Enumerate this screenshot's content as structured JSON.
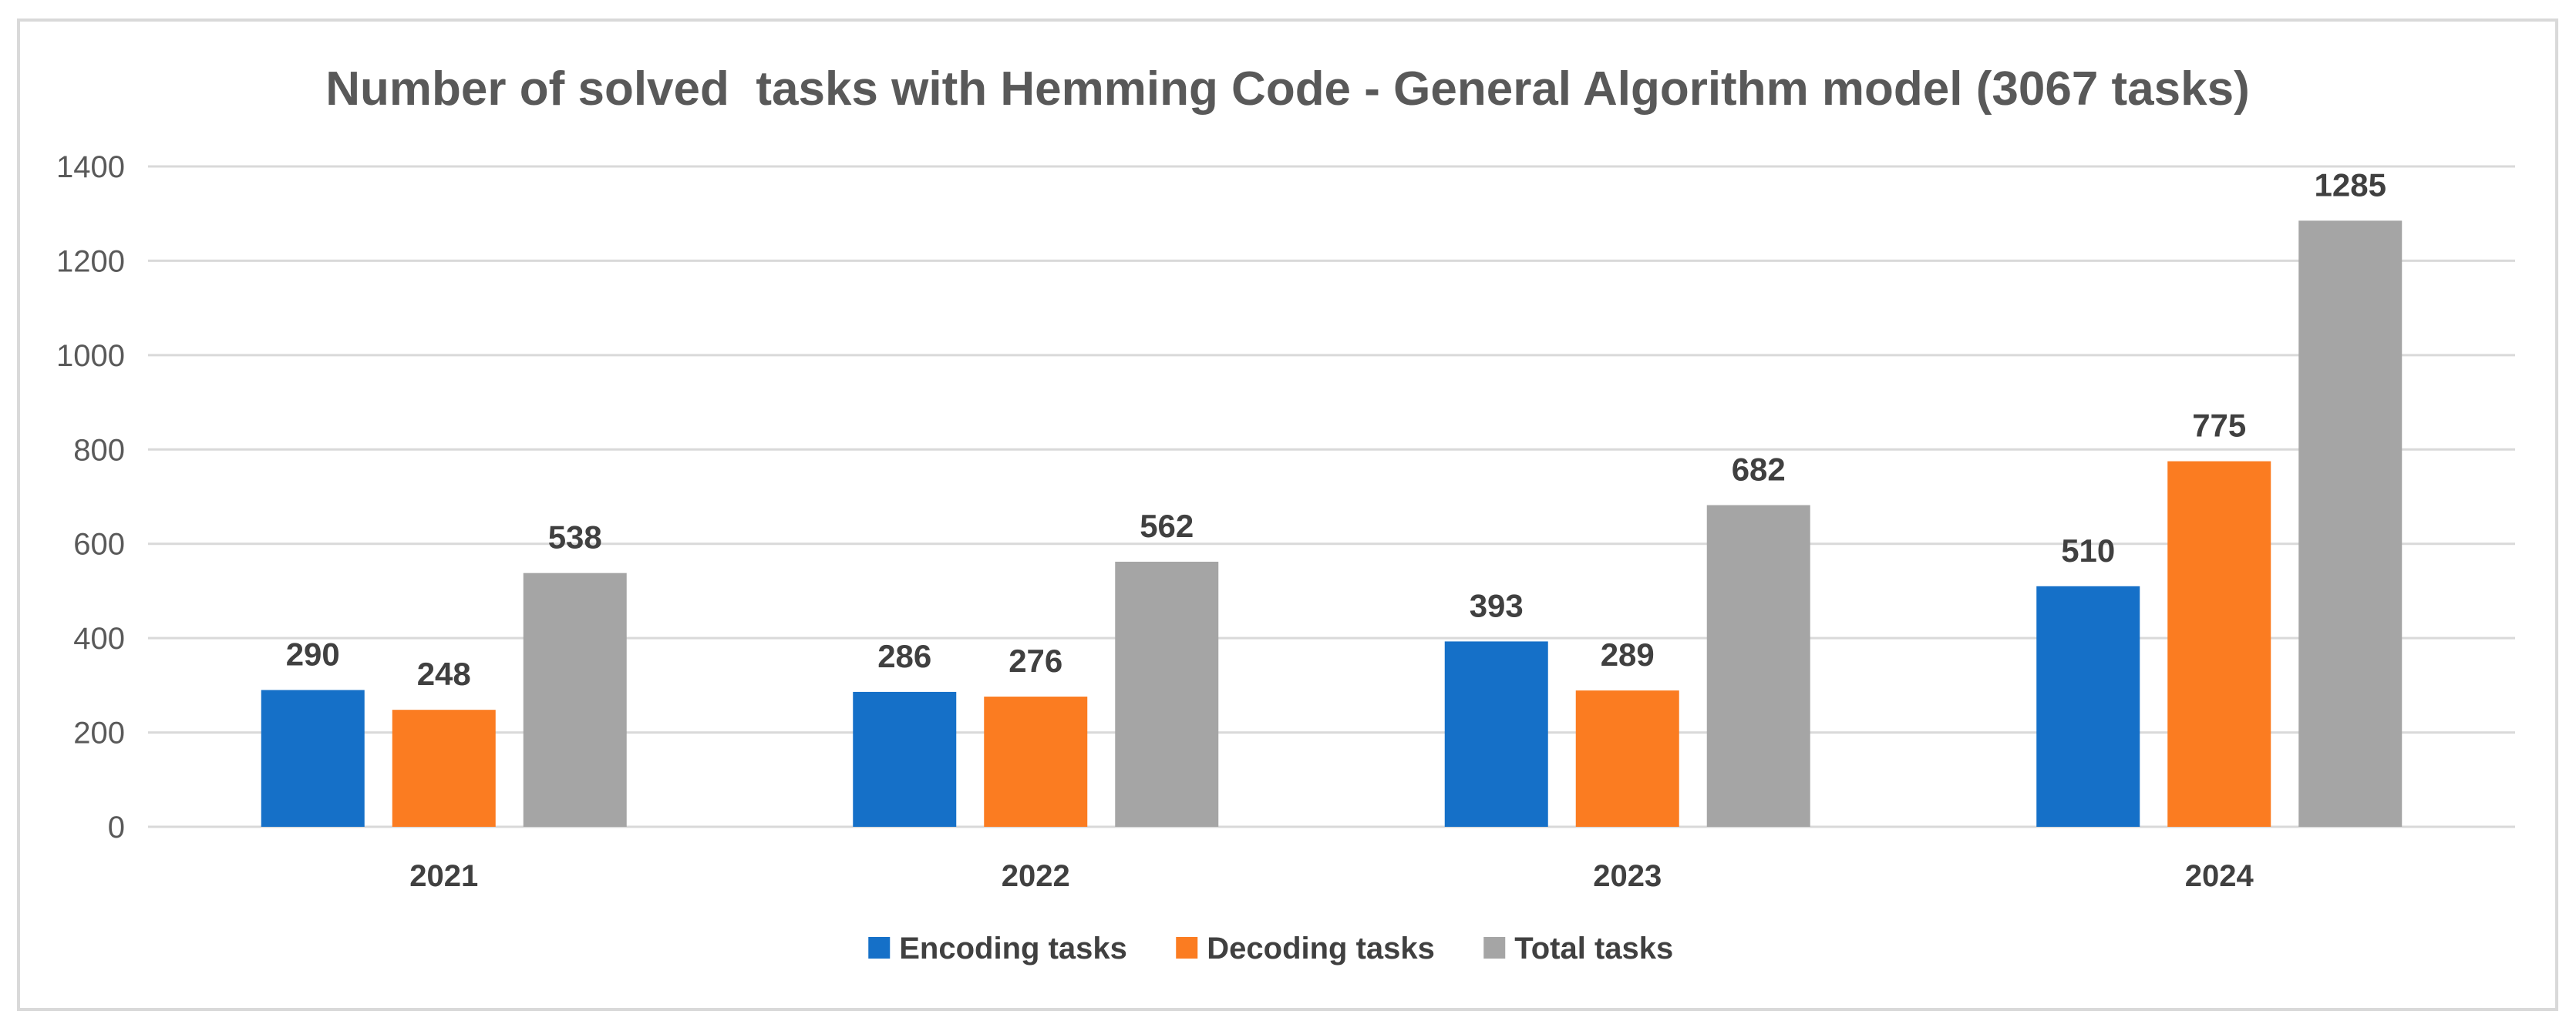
{
  "chart_data": {
    "type": "bar",
    "title": "Number of solved  tasks with Hemming Code - General Algorithm model (3067 tasks)",
    "xlabel": "",
    "ylabel": "",
    "categories": [
      "2021",
      "2022",
      "2023",
      "2024"
    ],
    "ylim": [
      0,
      1400
    ],
    "yticks": [
      0,
      200,
      400,
      600,
      800,
      1000,
      1200,
      1400
    ],
    "grid": true,
    "legend_position": "bottom",
    "series": [
      {
        "name": "Encoding tasks",
        "color": "#1570c8",
        "values": [
          290,
          286,
          393,
          510
        ]
      },
      {
        "name": "Decoding tasks",
        "color": "#fb7c21",
        "values": [
          248,
          276,
          289,
          775
        ]
      },
      {
        "name": "Total tasks",
        "color": "#a5a5a5",
        "values": [
          538,
          562,
          682,
          1285
        ]
      }
    ]
  }
}
